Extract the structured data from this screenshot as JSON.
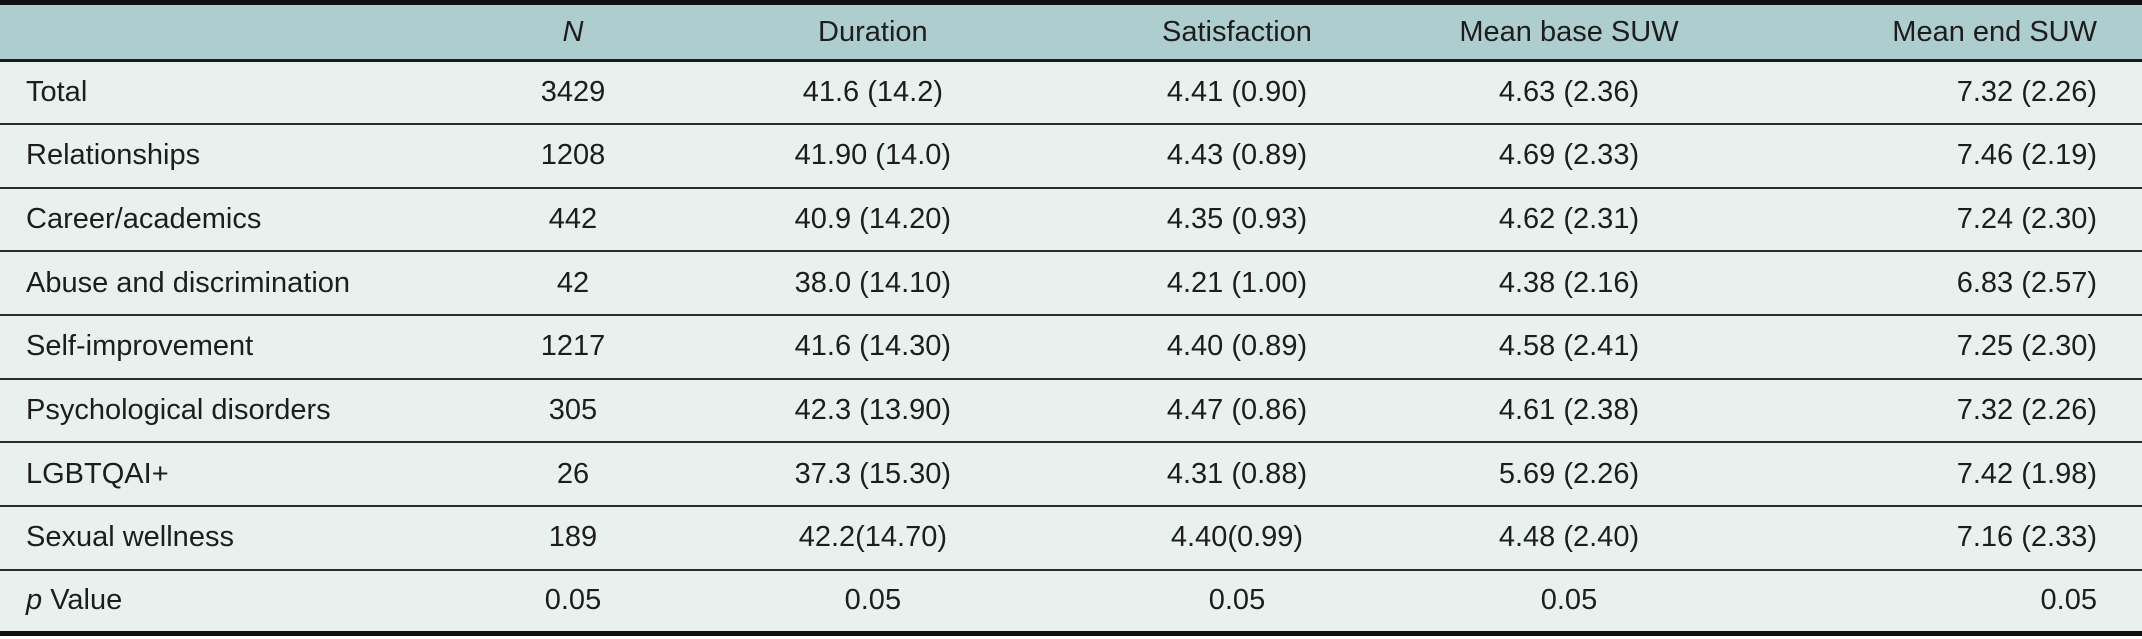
{
  "table": {
    "description": "Statistics table of session metrics by topic category",
    "columns": [
      {
        "italic": "",
        "text": ""
      },
      {
        "italic": "N",
        "text": ""
      },
      {
        "italic": "",
        "text": "Duration"
      },
      {
        "italic": "",
        "text": "Satisfaction"
      },
      {
        "italic": "",
        "text": "Mean base SUW"
      },
      {
        "italic": "",
        "text": "Mean end SUW"
      }
    ],
    "rows": [
      {
        "label_italic": "",
        "label": "Total",
        "values": [
          "3429",
          "41.6 (14.2)",
          "4.41 (0.90)",
          "4.63 (2.36)",
          "7.32 (2.26)"
        ]
      },
      {
        "label_italic": "",
        "label": "Relationships",
        "values": [
          "1208",
          "41.90 (14.0)",
          "4.43 (0.89)",
          "4.69 (2.33)",
          "7.46 (2.19)"
        ]
      },
      {
        "label_italic": "",
        "label": "Career/academics",
        "values": [
          "442",
          "40.9 (14.20)",
          "4.35 (0.93)",
          "4.62 (2.31)",
          "7.24 (2.30)"
        ]
      },
      {
        "label_italic": "",
        "label": "Abuse and discrimination",
        "values": [
          "42",
          "38.0 (14.10)",
          "4.21 (1.00)",
          "4.38 (2.16)",
          "6.83 (2.57)"
        ]
      },
      {
        "label_italic": "",
        "label": "Self-improvement",
        "values": [
          "1217",
          "41.6 (14.30)",
          "4.40 (0.89)",
          "4.58 (2.41)",
          "7.25 (2.30)"
        ]
      },
      {
        "label_italic": "",
        "label": "Psychological disorders",
        "values": [
          "305",
          "42.3 (13.90)",
          "4.47 (0.86)",
          "4.61 (2.38)",
          "7.32 (2.26)"
        ]
      },
      {
        "label_italic": "",
        "label": "LGBTQAI+",
        "values": [
          "26",
          "37.3 (15.30)",
          "4.31 (0.88)",
          "5.69 (2.26)",
          "7.42 (1.98)"
        ]
      },
      {
        "label_italic": "",
        "label": "Sexual wellness",
        "values": [
          "189",
          "42.2(14.70)",
          "4.40(0.99)",
          "4.48 (2.40)",
          "7.16 (2.33)"
        ]
      },
      {
        "label_italic": "p",
        "label": " Value",
        "values": [
          "0.05",
          "0.05",
          "0.05",
          "0.05",
          "0.05"
        ]
      }
    ],
    "colors": {
      "header_bg": "#aecdce",
      "row_bg": "#e9f1ef",
      "outer_border": "#111111",
      "row_rule": "#2b2b2b",
      "header_rule": "#1b1b1b",
      "text": "#1d1d1d"
    }
  }
}
